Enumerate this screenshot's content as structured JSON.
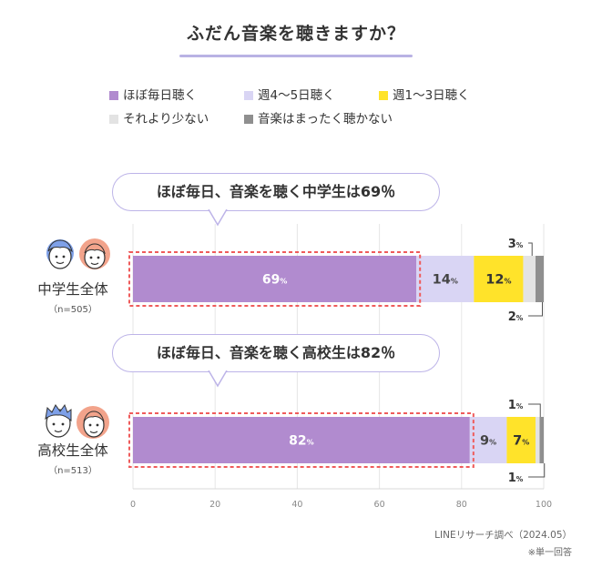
{
  "title": "ふだん音楽を聴きますか？",
  "legend": [
    {
      "label": "ほぼ毎日聴く",
      "color": "#b18bcf"
    },
    {
      "label": "週4～5日聴く",
      "color": "#d9d5f4"
    },
    {
      "label": "週1～3日聴く",
      "color": "#ffe32a"
    },
    {
      "label": "それより少ない",
      "color": "#e3e3e3"
    },
    {
      "label": "音楽はまったく聴かない",
      "color": "#8f8f8f"
    }
  ],
  "callouts": [
    "ほぼ毎日、音楽を聴く中学生は69％",
    "ほぼ毎日、音楽を聴く高校生は82％"
  ],
  "groups": [
    {
      "label": "中学生全体",
      "n": "（n=505）"
    },
    {
      "label": "高校生全体",
      "n": "（n=513）"
    }
  ],
  "source": "LINEリサーチ調べ（2024.05）",
  "note": "※単一回答",
  "chart_data": {
    "type": "bar",
    "orientation": "horizontal",
    "stacked": true,
    "categories": [
      "中学生全体",
      "高校生全体"
    ],
    "unit": "%",
    "xlim": [
      0,
      100
    ],
    "xticks": [
      "0",
      "20",
      "40",
      "60",
      "80",
      "100"
    ],
    "grid": true,
    "legend_position": "top",
    "series": [
      {
        "name": "ほぼ毎日聴く",
        "color": "#b18bcf",
        "label_color": "#ffffff",
        "values": [
          69,
          82
        ]
      },
      {
        "name": "週4～5日聴く",
        "color": "#d9d5f4",
        "label_color": "#444444",
        "values": [
          14,
          9
        ]
      },
      {
        "name": "週1～3日聴く",
        "color": "#ffe32a",
        "label_color": "#333333",
        "values": [
          12,
          7
        ]
      },
      {
        "name": "それより少ない",
        "color": "#e3e3e3",
        "label_color": "#333333",
        "values": [
          3,
          1
        ]
      },
      {
        "name": "音楽はまったく聴かない",
        "color": "#8f8f8f",
        "label_color": "#333333",
        "values": [
          2,
          1
        ]
      }
    ]
  }
}
